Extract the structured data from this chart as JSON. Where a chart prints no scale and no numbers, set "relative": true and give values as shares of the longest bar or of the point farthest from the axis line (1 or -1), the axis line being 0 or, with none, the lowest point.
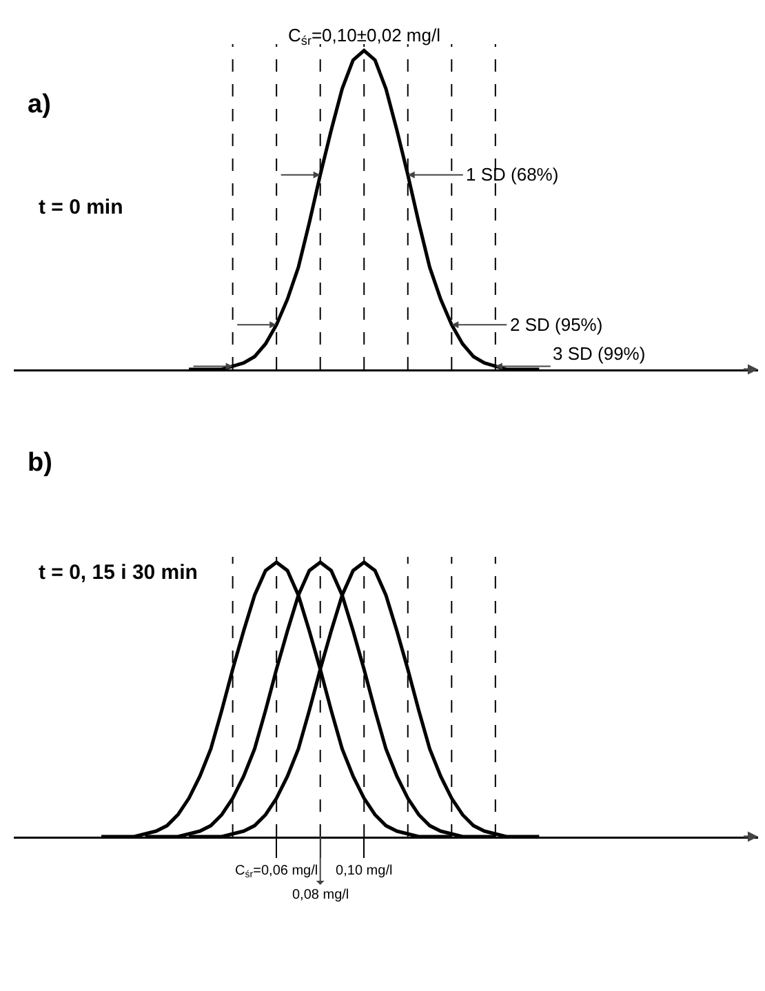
{
  "chart_data": [
    {
      "type": "line",
      "title": "a)",
      "subtitle": "t = 0 min",
      "relative": true,
      "xlim": [
        -0.06,
        0.28
      ],
      "tick_labels": false,
      "marker": "none",
      "line_style": "solid",
      "series": [
        {
          "color": "#000000",
          "x": [
            0.02,
            0.025,
            0.03,
            0.035,
            0.04,
            0.045,
            0.05,
            0.055,
            0.06,
            0.065,
            0.07,
            0.075,
            0.08,
            0.085,
            0.09,
            0.095,
            0.1,
            0.105,
            0.11,
            0.115,
            0.12,
            0.125,
            0.13,
            0.135,
            0.14,
            0.145,
            0.15,
            0.155,
            0.16,
            0.165,
            0.17,
            0.175,
            0.18
          ],
          "values": [
            0,
            0,
            0,
            0,
            0.01,
            0.02,
            0.04,
            0.08,
            0.14,
            0.22,
            0.32,
            0.46,
            0.61,
            0.75,
            0.88,
            0.97,
            1,
            0.97,
            0.88,
            0.75,
            0.61,
            0.46,
            0.32,
            0.22,
            0.14,
            0.08,
            0.04,
            0.02,
            0.01,
            0,
            0,
            0,
            0
          ]
        }
      ],
      "annotations": [
        {
          "text": "C$_{śr}$=0,10±0,02 mg/l",
          "x": 0.1,
          "y": 1
        },
        {
          "text": "1 SD (68%)",
          "x": 0.12,
          "y": 0.61
        },
        {
          "text": "2 SD (95%)",
          "x": 0.14,
          "y": 0.14
        },
        {
          "text": "3 SD (99%)",
          "x": 0.16,
          "y": 0.01
        }
      ],
      "ref_lines": [
        {
          "axis": "x",
          "value": 0.04,
          "line_style": "dashed",
          "color": "#000000"
        },
        {
          "axis": "x",
          "value": 0.06,
          "line_style": "dashed",
          "color": "#000000"
        },
        {
          "axis": "x",
          "value": 0.08,
          "line_style": "dashed",
          "color": "#000000"
        },
        {
          "axis": "x",
          "value": 0.1,
          "line_style": "dashed",
          "color": "#000000"
        },
        {
          "axis": "x",
          "value": 0.12,
          "line_style": "dashed",
          "color": "#000000"
        },
        {
          "axis": "x",
          "value": 0.14,
          "line_style": "dashed",
          "color": "#000000"
        },
        {
          "axis": "x",
          "value": 0.16,
          "line_style": "dashed",
          "color": "#000000"
        }
      ]
    },
    {
      "type": "line",
      "title": "b)",
      "subtitle": "t = 0, 15 i 30 min",
      "annotations": [
        {
          "text": "0,08 mg/l",
          "x": 0.08,
          "y": 0
        }
      ],
      "relative": true,
      "xlim": [
        -0.06,
        0.28
      ],
      "tick_labels": "x",
      "marker": "none",
      "line_style": "solid",
      "xticks": [
        {
          "value": 0.06,
          "label": "C$_{śr}$=0,06 mg/l"
        },
        {
          "value": 0.08,
          "label": null
        },
        {
          "value": 0.1,
          "label": "0,10 mg/l"
        }
      ],
      "series": [
        {
          "color": "#000000",
          "x": [
            -0.02,
            -0.015,
            -0.01,
            -0.005,
            0,
            0.005,
            0.01,
            0.015,
            0.02,
            0.025,
            0.03,
            0.035,
            0.04,
            0.045,
            0.05,
            0.055,
            0.06,
            0.065,
            0.07,
            0.075,
            0.08,
            0.085,
            0.09,
            0.095,
            0.1,
            0.105,
            0.11,
            0.115,
            0.12,
            0.125,
            0.13,
            0.135,
            0.14
          ],
          "values": [
            0,
            0,
            0,
            0,
            0.01,
            0.02,
            0.04,
            0.08,
            0.14,
            0.22,
            0.32,
            0.46,
            0.61,
            0.75,
            0.88,
            0.97,
            1,
            0.97,
            0.88,
            0.75,
            0.61,
            0.46,
            0.32,
            0.22,
            0.14,
            0.08,
            0.04,
            0.02,
            0.01,
            0,
            0,
            0,
            0
          ]
        },
        {
          "color": "#000000",
          "x": [
            0,
            0.005,
            0.01,
            0.015,
            0.02,
            0.025,
            0.03,
            0.035,
            0.04,
            0.045,
            0.05,
            0.055,
            0.06,
            0.065,
            0.07,
            0.075,
            0.08,
            0.085,
            0.09,
            0.095,
            0.1,
            0.105,
            0.11,
            0.115,
            0.12,
            0.125,
            0.13,
            0.135,
            0.14,
            0.145,
            0.15,
            0.155,
            0.16
          ],
          "values": [
            0,
            0,
            0,
            0,
            0.01,
            0.02,
            0.04,
            0.08,
            0.14,
            0.22,
            0.32,
            0.46,
            0.61,
            0.75,
            0.88,
            0.97,
            1,
            0.97,
            0.88,
            0.75,
            0.61,
            0.46,
            0.32,
            0.22,
            0.14,
            0.08,
            0.04,
            0.02,
            0.01,
            0,
            0,
            0,
            0
          ]
        },
        {
          "color": "#000000",
          "x": [
            0.02,
            0.025,
            0.03,
            0.035,
            0.04,
            0.045,
            0.05,
            0.055,
            0.06,
            0.065,
            0.07,
            0.075,
            0.08,
            0.085,
            0.09,
            0.095,
            0.1,
            0.105,
            0.11,
            0.115,
            0.12,
            0.125,
            0.13,
            0.135,
            0.14,
            0.145,
            0.15,
            0.155,
            0.16,
            0.165,
            0.17,
            0.175,
            0.18
          ],
          "values": [
            0,
            0,
            0,
            0,
            0.01,
            0.02,
            0.04,
            0.08,
            0.14,
            0.22,
            0.32,
            0.46,
            0.61,
            0.75,
            0.88,
            0.97,
            1,
            0.97,
            0.88,
            0.75,
            0.61,
            0.46,
            0.32,
            0.22,
            0.14,
            0.08,
            0.04,
            0.02,
            0.01,
            0,
            0,
            0,
            0
          ]
        }
      ],
      "ref_lines": [
        {
          "axis": "x",
          "value": 0.04,
          "line_style": "dashed",
          "color": "#000000"
        },
        {
          "axis": "x",
          "value": 0.06,
          "line_style": "dashed",
          "color": "#000000"
        },
        {
          "axis": "x",
          "value": 0.08,
          "line_style": "dashed",
          "color": "#000000"
        },
        {
          "axis": "x",
          "value": 0.1,
          "line_style": "dashed",
          "color": "#000000"
        },
        {
          "axis": "x",
          "value": 0.12,
          "line_style": "dashed",
          "color": "#000000"
        },
        {
          "axis": "x",
          "value": 0.14,
          "line_style": "dashed",
          "color": "#000000"
        },
        {
          "axis": "x",
          "value": 0.16,
          "line_style": "dashed",
          "color": "#000000"
        }
      ]
    }
  ]
}
